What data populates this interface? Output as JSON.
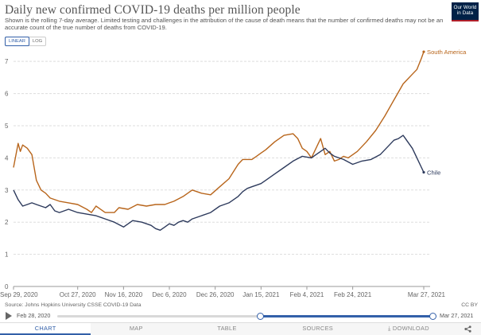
{
  "header": {
    "title": "Daily new confirmed COVID-19 deaths per million people",
    "subtitle": "Shown is the rolling 7-day average. Limited testing and challenges in the attribution of the cause of death means that the number of confirmed deaths may not be an accurate count of the true number of deaths from COVID-19.",
    "logo_line1": "Our World",
    "logo_line2": "in Data"
  },
  "controls": {
    "linear_label": "LINEAR",
    "log_label": "LOG",
    "selected": "linear"
  },
  "chart_data": {
    "type": "line",
    "title": "Daily new confirmed COVID-19 deaths per million people",
    "y_ticks": [
      "0",
      "1",
      "2",
      "3",
      "4",
      "5",
      "6",
      "7"
    ],
    "x_tick_labels": [
      "Sep 29, 2020",
      "Oct 27, 2020",
      "Nov 16, 2020",
      "Dec 6, 2020",
      "Dec 26, 2020",
      "Jan 15, 2021",
      "Feb 4, 2021",
      "Feb 24, 2021",
      "Mar 27, 2021"
    ],
    "x_tick_days": [
      0,
      28,
      48,
      68,
      88,
      108,
      128,
      148,
      179
    ],
    "x_range_days": [
      0,
      179
    ],
    "ylim": [
      0,
      7.4
    ],
    "grid": "horizontal",
    "legend": "inline at line ends",
    "series": [
      {
        "name": "South America",
        "color": "#b8651b",
        "x": [
          0,
          2,
          3,
          4,
          6,
          8,
          10,
          12,
          14,
          16,
          20,
          24,
          28,
          32,
          34,
          36,
          40,
          44,
          46,
          50,
          54,
          58,
          62,
          66,
          68,
          70,
          74,
          78,
          82,
          86,
          90,
          94,
          98,
          100,
          102,
          104,
          106,
          108,
          110,
          114,
          118,
          122,
          124,
          126,
          128,
          130,
          132,
          134,
          136,
          138,
          140,
          142,
          144,
          146,
          150,
          154,
          158,
          162,
          166,
          170,
          174,
          176,
          178,
          179
        ],
        "values": [
          3.7,
          4.45,
          4.2,
          4.4,
          4.3,
          4.1,
          3.3,
          3.0,
          2.9,
          2.75,
          2.65,
          2.6,
          2.55,
          2.4,
          2.3,
          2.5,
          2.3,
          2.3,
          2.45,
          2.4,
          2.55,
          2.5,
          2.55,
          2.55,
          2.6,
          2.65,
          2.8,
          3.0,
          2.9,
          2.85,
          3.1,
          3.35,
          3.8,
          3.95,
          3.95,
          3.95,
          4.05,
          4.15,
          4.25,
          4.5,
          4.7,
          4.75,
          4.6,
          4.3,
          4.2,
          4.0,
          4.3,
          4.6,
          4.1,
          4.2,
          3.9,
          3.95,
          4.05,
          4.0,
          4.2,
          4.5,
          4.85,
          5.3,
          5.8,
          6.3,
          6.6,
          6.75,
          7.1,
          7.3
        ]
      },
      {
        "name": "Chile",
        "color": "#2d3a5c",
        "x": [
          0,
          2,
          4,
          6,
          8,
          10,
          12,
          14,
          16,
          18,
          20,
          24,
          28,
          32,
          36,
          40,
          44,
          48,
          52,
          56,
          60,
          62,
          64,
          66,
          68,
          70,
          72,
          74,
          76,
          78,
          82,
          86,
          90,
          94,
          98,
          100,
          102,
          104,
          106,
          108,
          110,
          114,
          118,
          122,
          126,
          130,
          132,
          134,
          136,
          138,
          140,
          144,
          148,
          152,
          156,
          160,
          164,
          166,
          168,
          170,
          172,
          174,
          176,
          178,
          179
        ],
        "values": [
          3.0,
          2.7,
          2.5,
          2.55,
          2.6,
          2.55,
          2.5,
          2.45,
          2.55,
          2.35,
          2.3,
          2.4,
          2.3,
          2.25,
          2.2,
          2.1,
          2.0,
          1.85,
          2.05,
          2.0,
          1.9,
          1.8,
          1.75,
          1.85,
          1.95,
          1.9,
          2.0,
          2.05,
          2.0,
          2.1,
          2.2,
          2.3,
          2.5,
          2.6,
          2.8,
          2.95,
          3.05,
          3.1,
          3.15,
          3.2,
          3.3,
          3.5,
          3.7,
          3.9,
          4.05,
          4.0,
          4.1,
          4.2,
          4.3,
          4.15,
          4.05,
          3.95,
          3.8,
          3.9,
          3.95,
          4.1,
          4.4,
          4.55,
          4.6,
          4.7,
          4.5,
          4.3,
          4.0,
          3.7,
          3.55
        ]
      }
    ]
  },
  "footer": {
    "source": "Source: Johns Hopkins University CSSE COVID-19 Data",
    "license": "CC BY",
    "timeline_start": "Feb 28, 2020",
    "timeline_end": "Mar 27, 2021"
  },
  "tabs": [
    {
      "label": "CHART",
      "active": true
    },
    {
      "label": "MAP",
      "active": false
    },
    {
      "label": "TABLE",
      "active": false
    },
    {
      "label": "SOURCES",
      "active": false
    },
    {
      "label": "⤓ DOWNLOAD",
      "active": false
    }
  ],
  "icons": {
    "play": "play-icon",
    "share": "share-icon"
  }
}
